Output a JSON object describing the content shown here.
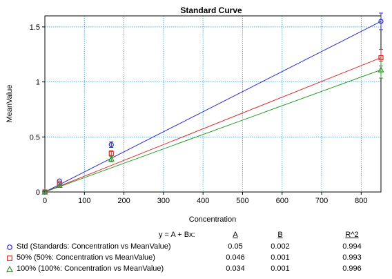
{
  "chart_data": {
    "type": "scatter",
    "title": "Standard Curve",
    "xlabel": "Concentration",
    "ylabel": "MeanValue",
    "xlim": [
      0,
      850
    ],
    "ylim": [
      0,
      1.6
    ],
    "xticks": [
      "0",
      "100",
      "200",
      "300",
      "400",
      "500",
      "600",
      "700",
      "800"
    ],
    "yticks": [
      "0",
      "0.5",
      "1",
      "1.5"
    ],
    "grid": true,
    "series": [
      {
        "name": "Std (Standards: Concentration vs MeanValue)",
        "color": "#2a2acc",
        "marker": "circle",
        "points": [
          [
            0,
            0.0
          ],
          [
            37,
            0.1
          ],
          [
            168,
            0.43
          ],
          [
            850,
            1.55
          ]
        ],
        "fit": {
          "A": 0.05,
          "B": 0.002
        }
      },
      {
        "name": "50% (50%: Concentration vs MeanValue)",
        "color": "#d42a2a",
        "marker": "square",
        "points": [
          [
            0,
            0.0
          ],
          [
            37,
            0.08
          ],
          [
            168,
            0.35
          ],
          [
            850,
            1.22
          ]
        ],
        "fit": {
          "A": 0.046,
          "B": 0.001
        }
      },
      {
        "name": "100% (100%: Concentration vs MeanValue)",
        "color": "#2a9a2a",
        "marker": "triangle",
        "points": [
          [
            0,
            0.0
          ],
          [
            37,
            0.06
          ],
          [
            168,
            0.3
          ],
          [
            850,
            1.11
          ]
        ],
        "fit": {
          "A": 0.034,
          "B": 0.001
        }
      }
    ]
  },
  "fit_table": {
    "equation": "y = A + Bx:",
    "headers": {
      "A": "A",
      "B": "B",
      "R2": "R^2"
    },
    "rows": [
      {
        "label": "Std (Standards: Concentration vs MeanValue)",
        "A": "0.05",
        "B": "0.002",
        "R2": "0.994"
      },
      {
        "label": "50% (50%: Concentration vs MeanValue)",
        "A": "0.046",
        "B": "0.001",
        "R2": "0.993"
      },
      {
        "label": "100% (100%: Concentration vs MeanValue)",
        "A": "0.034",
        "B": "0.001",
        "R2": "0.996"
      }
    ]
  }
}
